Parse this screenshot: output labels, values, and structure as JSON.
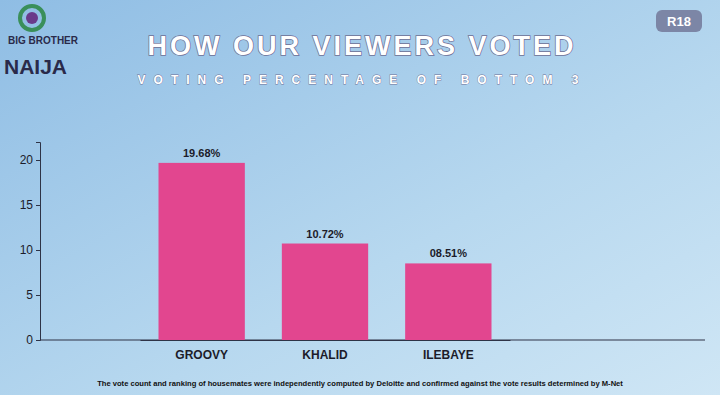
{
  "chart_data": {
    "type": "bar",
    "title": "HOW OUR VIEWERS VOTED",
    "subtitle": "VOTING PERCENTAGE OF BOTTOM 3",
    "categories": [
      "GROOVY",
      "KHALID",
      "ILEBAYE"
    ],
    "values": [
      19.68,
      10.72,
      8.51
    ],
    "value_labels": [
      "19.68%",
      "10.72%",
      "08.51%"
    ],
    "data_labels": true,
    "color": "#e2468f",
    "ylim": [
      0,
      22
    ],
    "yticks": [
      0,
      5,
      10,
      15,
      20
    ],
    "grid": false,
    "logo_text": [
      "BIG BROTHER",
      "NAIJA"
    ],
    "badge": "R18",
    "footnote": "The vote count and ranking of housemates were independently computed by Deloitte and confirmed against the vote results determined by M-Net"
  }
}
